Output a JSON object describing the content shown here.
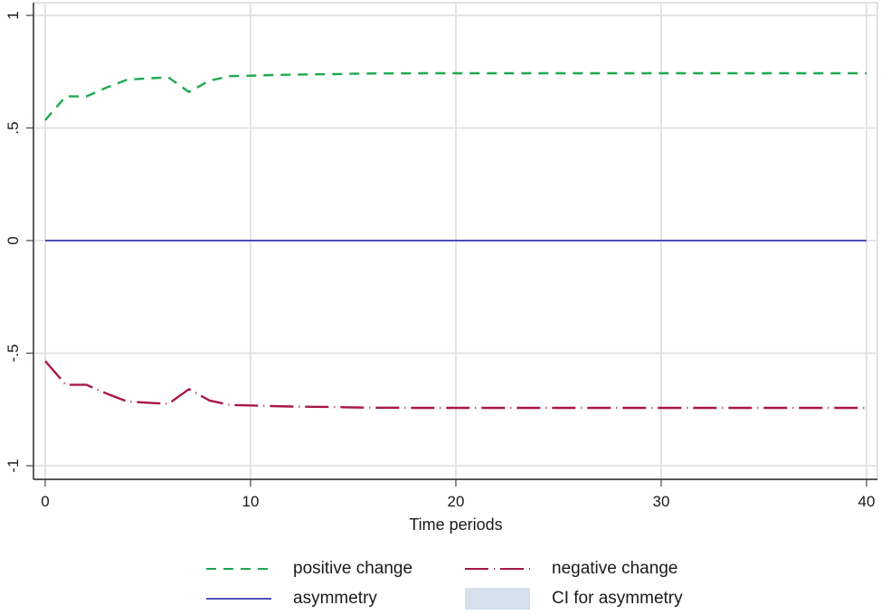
{
  "chart_data": {
    "type": "line",
    "title": "",
    "xlabel": "Time periods",
    "ylabel": "",
    "xlim": [
      0,
      40
    ],
    "ylim": [
      -1,
      1
    ],
    "x_ticks": [
      0,
      10,
      20,
      30,
      40
    ],
    "x_tick_labels": [
      "0",
      "10",
      "20",
      "30",
      "40"
    ],
    "y_ticks": [
      -1,
      -0.5,
      0,
      0.5,
      1
    ],
    "y_tick_labels": [
      "-1",
      "-.5",
      "0",
      ".5",
      "1"
    ],
    "grid": true,
    "legend_position": "bottom",
    "x": [
      0,
      1,
      2,
      3,
      4,
      5,
      6,
      7,
      8,
      9,
      10,
      11,
      12,
      13,
      14,
      15,
      16,
      17,
      18,
      19,
      20,
      21,
      22,
      23,
      24,
      25,
      26,
      27,
      28,
      29,
      30,
      31,
      32,
      33,
      34,
      35,
      36,
      37,
      38,
      39,
      40
    ],
    "series": [
      {
        "name": "positive change",
        "color": "#1fa84f",
        "style": "dash",
        "values": [
          0.535,
          0.64,
          0.64,
          0.68,
          0.715,
          0.72,
          0.725,
          0.66,
          0.71,
          0.73,
          0.732,
          0.735,
          0.737,
          0.738,
          0.739,
          0.741,
          0.742,
          0.742,
          0.743,
          0.743,
          0.743,
          0.743,
          0.743,
          0.743,
          0.743,
          0.743,
          0.743,
          0.743,
          0.743,
          0.743,
          0.743,
          0.743,
          0.743,
          0.743,
          0.743,
          0.743,
          0.743,
          0.743,
          0.743,
          0.743,
          0.743
        ]
      },
      {
        "name": "negative change",
        "color": "#a8174a",
        "style": "longdash-dot",
        "values": [
          -0.535,
          -0.64,
          -0.64,
          -0.68,
          -0.715,
          -0.72,
          -0.725,
          -0.66,
          -0.71,
          -0.73,
          -0.732,
          -0.735,
          -0.737,
          -0.738,
          -0.739,
          -0.741,
          -0.742,
          -0.742,
          -0.743,
          -0.743,
          -0.743,
          -0.743,
          -0.743,
          -0.743,
          -0.743,
          -0.743,
          -0.743,
          -0.743,
          -0.743,
          -0.743,
          -0.743,
          -0.743,
          -0.743,
          -0.743,
          -0.743,
          -0.743,
          -0.743,
          -0.743,
          -0.743,
          -0.743,
          -0.743
        ]
      },
      {
        "name": "asymmetry",
        "color": "#1a1aa8",
        "style": "solid",
        "values": [
          0,
          0,
          0,
          0,
          0,
          0,
          0,
          0,
          0,
          0,
          0,
          0,
          0,
          0,
          0,
          0,
          0,
          0,
          0,
          0,
          0,
          0,
          0,
          0,
          0,
          0,
          0,
          0,
          0,
          0,
          0,
          0,
          0,
          0,
          0,
          0,
          0,
          0,
          0,
          0,
          0
        ]
      },
      {
        "name": "CI for asymmetry",
        "color": "#d6dfec",
        "style": "area",
        "values": []
      }
    ]
  },
  "legend": {
    "items": [
      {
        "label": "positive change",
        "color": "#1fa84f",
        "style": "dash"
      },
      {
        "label": "negative change",
        "color": "#a8174a",
        "style": "longdash-dot"
      },
      {
        "label": "asymmetry",
        "color": "#1a1aa8",
        "style": "solid"
      },
      {
        "label": "CI for asymmetry",
        "color": "#d6dfec",
        "style": "area"
      }
    ]
  }
}
